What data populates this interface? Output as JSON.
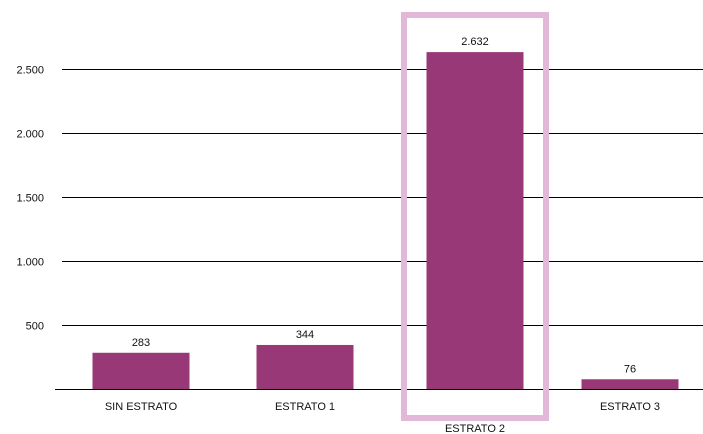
{
  "chart_data": {
    "type": "bar",
    "categories": [
      "SIN ESTRATO",
      "ESTRATO 1",
      "ESTRATO 2",
      "ESTRATO 3"
    ],
    "values": [
      283,
      344,
      2632,
      76
    ],
    "value_labels": [
      "283",
      "344",
      "2.632",
      "76"
    ],
    "yticks": [
      500,
      1000,
      1500,
      2000,
      2500
    ],
    "ytick_labels": [
      "500",
      "1.000",
      "1.500",
      "2.000",
      "2.500"
    ],
    "ylim": [
      0,
      2800
    ],
    "grid": true,
    "legend": "none",
    "highlighted_category": "ESTRATO 2",
    "title": "",
    "xlabel": "",
    "ylabel": ""
  },
  "colors": {
    "bar": "#993876",
    "highlight_frame": "#E2B8D8",
    "grid": "#000000"
  }
}
